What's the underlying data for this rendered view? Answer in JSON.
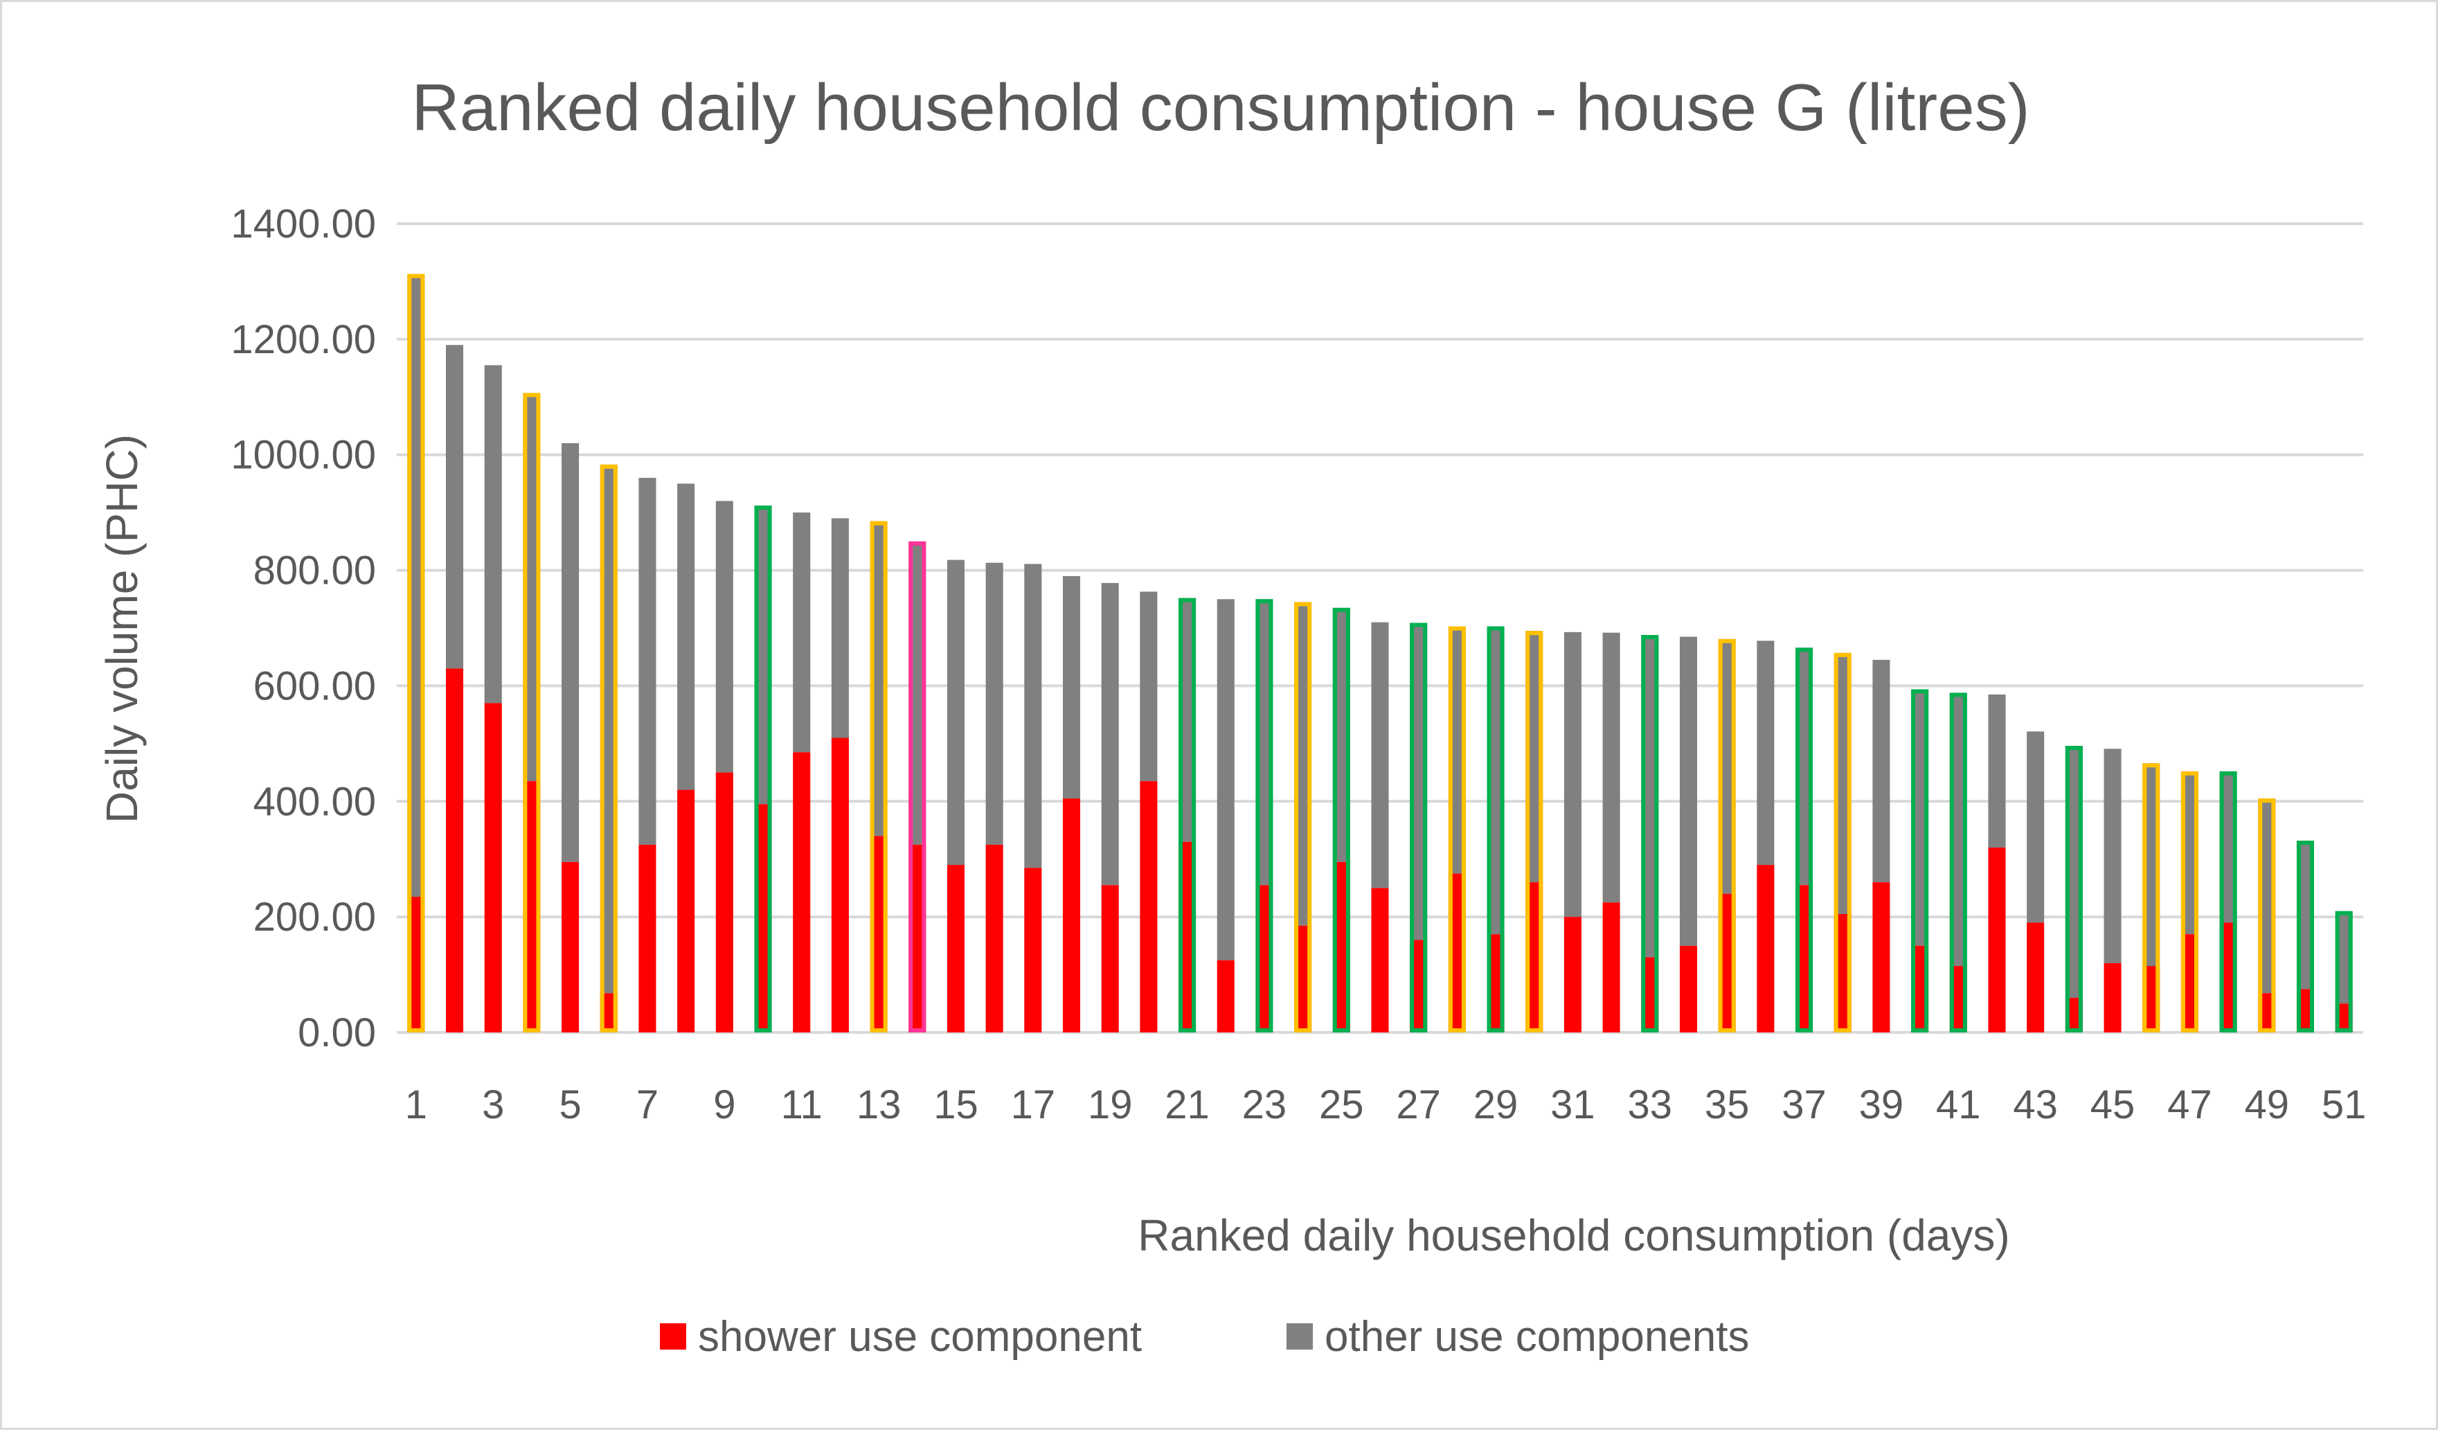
{
  "chart_data": {
    "type": "bar",
    "stacked": true,
    "title": "Ranked daily household consumption - house G (litres)",
    "xlabel": "Ranked daily household consumption (days)",
    "ylabel": "Daily volume (PHC)",
    "ylim": [
      0,
      1400
    ],
    "yticks": [
      "0.00",
      "200.00",
      "400.00",
      "600.00",
      "800.00",
      "1000.00",
      "1200.00",
      "1400.00"
    ],
    "ytick_values": [
      0,
      200,
      400,
      600,
      800,
      1000,
      1200,
      1400
    ],
    "xtick_labels": [
      "1",
      "3",
      "5",
      "7",
      "9",
      "11",
      "13",
      "15",
      "17",
      "19",
      "21",
      "23",
      "25",
      "27",
      "29",
      "31",
      "33",
      "35",
      "37",
      "39",
      "41",
      "43",
      "45",
      "47",
      "49",
      "51"
    ],
    "grid": true,
    "legend_position": "bottom",
    "colors": {
      "shower": "#ff0000",
      "other": "#808080",
      "grid": "#d9d9d9",
      "outline_yellow": "#ffc000",
      "outline_green": "#00b050",
      "outline_pink": "#ff3399"
    },
    "categories": [
      1,
      2,
      3,
      4,
      5,
      6,
      7,
      8,
      9,
      10,
      11,
      12,
      13,
      14,
      15,
      16,
      17,
      18,
      19,
      20,
      21,
      22,
      23,
      24,
      25,
      26,
      27,
      28,
      29,
      30,
      31,
      32,
      33,
      34,
      35,
      36,
      37,
      38,
      39,
      40,
      41,
      42,
      43,
      44,
      45,
      46,
      47,
      48,
      49,
      50,
      51
    ],
    "series": [
      {
        "name": "shower use component",
        "color": "#ff0000",
        "values": [
          235,
          630,
          570,
          435,
          295,
          68,
          325,
          420,
          450,
          395,
          485,
          510,
          340,
          325,
          290,
          325,
          285,
          405,
          255,
          435,
          330,
          125,
          255,
          185,
          295,
          250,
          160,
          275,
          170,
          260,
          200,
          225,
          130,
          150,
          240,
          290,
          255,
          205,
          260,
          150,
          115,
          320,
          190,
          60,
          120,
          115,
          170,
          190,
          68,
          75,
          50
        ]
      },
      {
        "name": "other use components",
        "color": "#808080",
        "values": [
          1078,
          560,
          585,
          672,
          725,
          915,
          635,
          530,
          470,
          517,
          415,
          380,
          545,
          525,
          528,
          488,
          526,
          385,
          523,
          328,
          422,
          625,
          495,
          560,
          440,
          460,
          549,
          428,
          533,
          435,
          493,
          467,
          558,
          535,
          441,
          388,
          411,
          452,
          385,
          444,
          473,
          265,
          331,
          436,
          371,
          351,
          282,
          262,
          337,
          257,
          160
        ]
      }
    ],
    "bar_outlines": [
      "yellow",
      "none",
      "none",
      "yellow",
      "none",
      "yellow",
      "none",
      "none",
      "none",
      "green",
      "none",
      "none",
      "yellow",
      "pink",
      "none",
      "none",
      "none",
      "none",
      "none",
      "none",
      "green",
      "none",
      "green",
      "yellow",
      "green",
      "none",
      "green",
      "yellow",
      "green",
      "yellow",
      "none",
      "none",
      "green",
      "none",
      "yellow",
      "none",
      "green",
      "yellow",
      "none",
      "green",
      "green",
      "none",
      "none",
      "green",
      "none",
      "yellow",
      "yellow",
      "green",
      "yellow",
      "green",
      "green"
    ],
    "legend": [
      "shower use component",
      "other use components"
    ]
  }
}
